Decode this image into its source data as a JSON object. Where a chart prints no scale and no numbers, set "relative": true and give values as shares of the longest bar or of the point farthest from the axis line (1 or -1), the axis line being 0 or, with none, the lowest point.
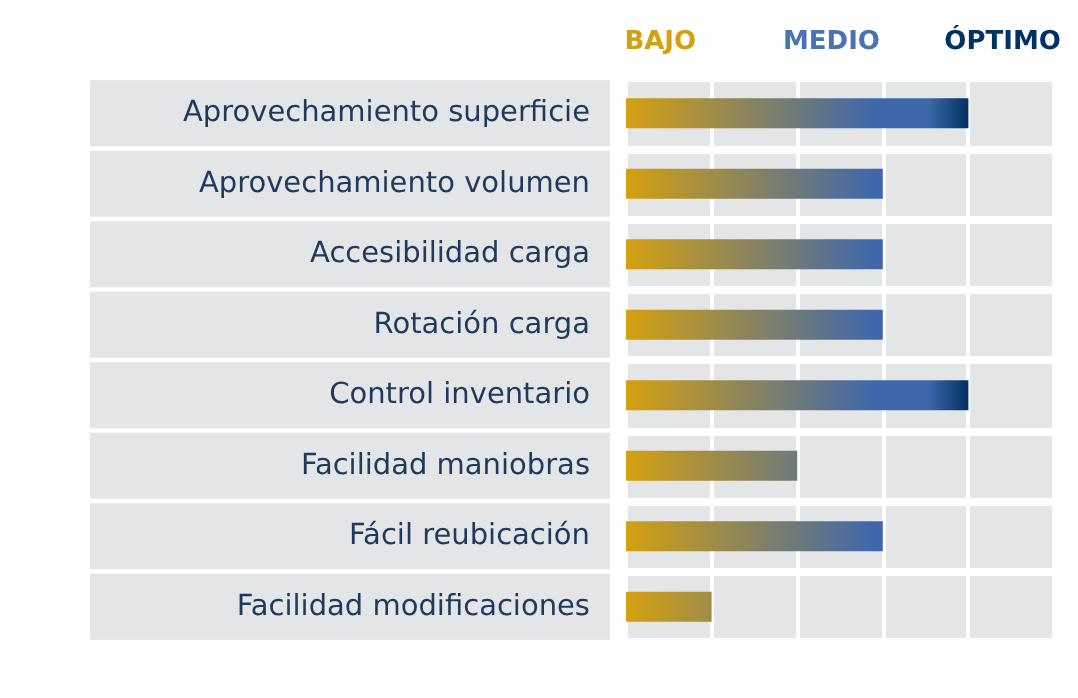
{
  "chart_data": {
    "type": "bar",
    "orientation": "horizontal",
    "relative": true,
    "grid": "x",
    "categories": [
      "Aprovechamiento superficie",
      "Aprovechamiento volumen",
      "Accesibilidad carga",
      "Rotación carga",
      "Control inventario",
      "Facilidad maniobras",
      "Fácil reubicación",
      "Facilidad modificaciones"
    ],
    "series": [
      {
        "values": [
          1,
          0.75,
          0.75,
          0.75,
          1,
          0.5,
          0.75,
          0.25
        ]
      }
    ],
    "annotations": [
      "BAJO",
      "MEDIO",
      "ÓPTIMO"
    ]
  }
}
